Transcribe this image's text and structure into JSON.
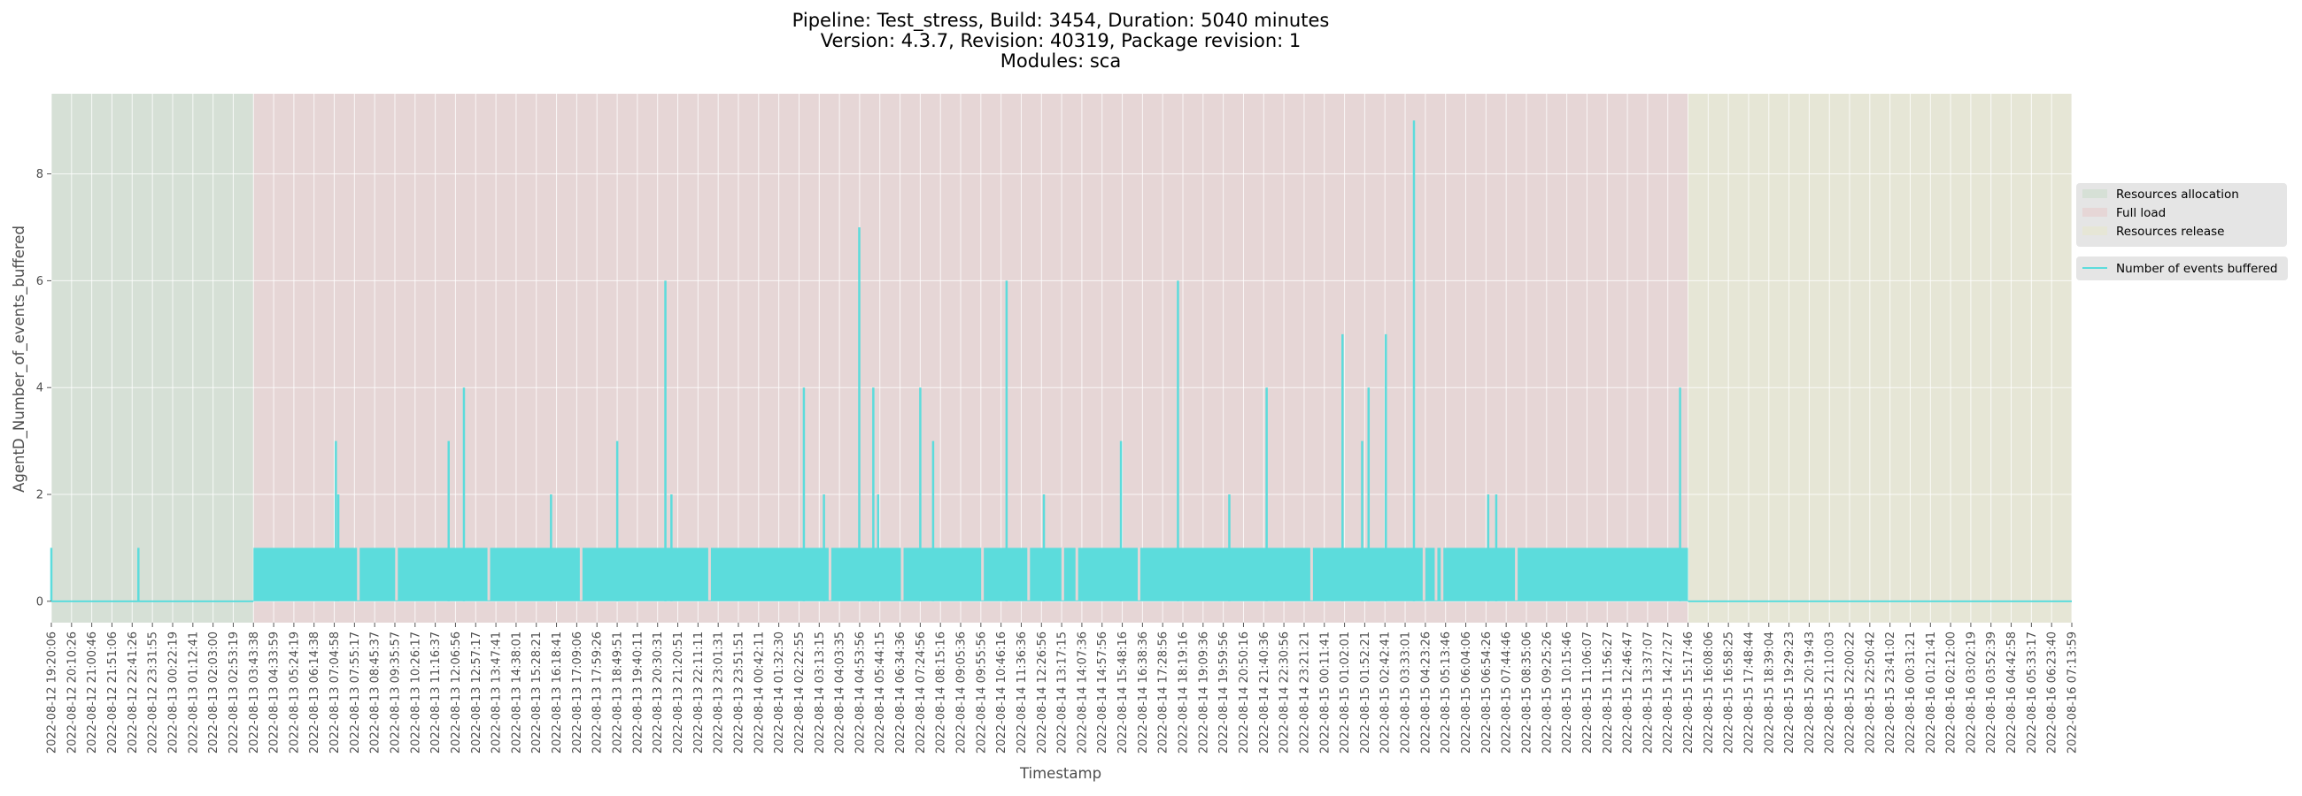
{
  "chart_data": {
    "type": "area",
    "title_lines": [
      "Pipeline: Test_stress, Build: 3454, Duration: 5040 minutes",
      "Version: 4.3.7, Revision: 40319, Package revision: 1",
      "Modules: sca"
    ],
    "xlabel": "Timestamp",
    "ylabel": "AgentD_Number_of_events_buffered",
    "ylim": [
      -0.4,
      9.5
    ],
    "yticks": [
      0,
      2,
      4,
      6,
      8
    ],
    "grid": true,
    "legend_position": "center-right, outside plot",
    "x_tick_labels": [
      "2022-08-12 19:20:06",
      "2022-08-12 20:10:26",
      "2022-08-12 21:00:46",
      "2022-08-12 21:51:06",
      "2022-08-12 22:41:26",
      "2022-08-12 23:31:55",
      "2022-08-13 00:22:19",
      "2022-08-13 01:12:41",
      "2022-08-13 02:03:00",
      "2022-08-13 02:53:19",
      "2022-08-13 03:43:38",
      "2022-08-13 04:33:59",
      "2022-08-13 05:24:19",
      "2022-08-13 06:14:38",
      "2022-08-13 07:04:58",
      "2022-08-13 07:55:17",
      "2022-08-13 08:45:37",
      "2022-08-13 09:35:57",
      "2022-08-13 10:26:17",
      "2022-08-13 11:16:37",
      "2022-08-13 12:06:56",
      "2022-08-13 12:57:17",
      "2022-08-13 13:47:41",
      "2022-08-13 14:38:01",
      "2022-08-13 15:28:21",
      "2022-08-13 16:18:41",
      "2022-08-13 17:09:06",
      "2022-08-13 17:59:26",
      "2022-08-13 18:49:51",
      "2022-08-13 19:40:11",
      "2022-08-13 20:30:31",
      "2022-08-13 21:20:51",
      "2022-08-13 22:11:11",
      "2022-08-13 23:01:31",
      "2022-08-13 23:51:51",
      "2022-08-14 00:42:11",
      "2022-08-14 01:32:30",
      "2022-08-14 02:22:55",
      "2022-08-14 03:13:15",
      "2022-08-14 04:03:35",
      "2022-08-14 04:53:56",
      "2022-08-14 05:44:15",
      "2022-08-14 06:34:36",
      "2022-08-14 07:24:56",
      "2022-08-14 08:15:16",
      "2022-08-14 09:05:36",
      "2022-08-14 09:55:56",
      "2022-08-14 10:46:16",
      "2022-08-14 11:36:36",
      "2022-08-14 12:26:56",
      "2022-08-14 13:17:15",
      "2022-08-14 14:07:36",
      "2022-08-14 14:57:56",
      "2022-08-14 15:48:16",
      "2022-08-14 16:38:36",
      "2022-08-14 17:28:56",
      "2022-08-14 18:19:16",
      "2022-08-14 19:09:36",
      "2022-08-14 19:59:56",
      "2022-08-14 20:50:16",
      "2022-08-14 21:40:36",
      "2022-08-14 22:30:56",
      "2022-08-14 23:21:21",
      "2022-08-15 00:11:41",
      "2022-08-15 01:02:01",
      "2022-08-15 01:52:21",
      "2022-08-15 02:42:41",
      "2022-08-15 03:33:01",
      "2022-08-15 04:23:26",
      "2022-08-15 05:13:46",
      "2022-08-15 06:04:06",
      "2022-08-15 06:54:26",
      "2022-08-15 07:44:46",
      "2022-08-15 08:35:06",
      "2022-08-15 09:25:26",
      "2022-08-15 10:15:46",
      "2022-08-15 11:06:07",
      "2022-08-15 11:56:27",
      "2022-08-15 12:46:47",
      "2022-08-15 13:37:07",
      "2022-08-15 14:27:27",
      "2022-08-15 15:17:46",
      "2022-08-15 16:08:06",
      "2022-08-15 16:58:25",
      "2022-08-15 17:48:44",
      "2022-08-15 18:39:04",
      "2022-08-15 19:29:23",
      "2022-08-15 20:19:43",
      "2022-08-15 21:10:03",
      "2022-08-15 22:00:22",
      "2022-08-15 22:50:42",
      "2022-08-15 23:41:02",
      "2022-08-16 00:31:21",
      "2022-08-16 01:21:41",
      "2022-08-16 02:12:00",
      "2022-08-16 03:02:19",
      "2022-08-16 03:52:39",
      "2022-08-16 04:42:58",
      "2022-08-16 05:33:17",
      "2022-08-16 06:23:40",
      "2022-08-16 07:13:59"
    ],
    "phases": [
      {
        "name": "Resources allocation",
        "start": "2022-08-12 19:20:06",
        "end": "2022-08-13 03:43:38",
        "color": "#d6e0d6"
      },
      {
        "name": "Full load",
        "start": "2022-08-13 03:43:38",
        "end": "2022-08-15 15:17:46",
        "color": "#e6d6d6"
      },
      {
        "name": "Resources release",
        "start": "2022-08-15 15:17:46",
        "end": "2022-08-16 07:13:59",
        "color": "#e6e6d6"
      }
    ],
    "series": [
      {
        "name": "Number of events buffered",
        "color": "#5cdcdc",
        "baseline": [
          {
            "start": "2022-08-12 19:20:06",
            "end": "2022-08-13 03:43:38",
            "value": 0
          },
          {
            "start": "2022-08-13 03:43:38",
            "end": "2022-08-15 15:17:46",
            "value": 1
          },
          {
            "start": "2022-08-15 15:17:46",
            "end": "2022-08-16 07:13:59",
            "value": 0
          }
        ],
        "spikes": [
          {
            "x": "2022-08-12 19:20:06",
            "y": 1
          },
          {
            "x": "2022-08-12 22:57:00",
            "y": 1
          },
          {
            "x": "2022-08-13 07:09:00",
            "y": 3
          },
          {
            "x": "2022-08-13 07:15:00",
            "y": 2
          },
          {
            "x": "2022-08-13 11:50:00",
            "y": 3
          },
          {
            "x": "2022-08-13 12:28:00",
            "y": 4
          },
          {
            "x": "2022-08-13 16:05:00",
            "y": 2
          },
          {
            "x": "2022-08-13 18:50:00",
            "y": 3
          },
          {
            "x": "2022-08-13 20:50:00",
            "y": 6
          },
          {
            "x": "2022-08-13 21:05:00",
            "y": 2
          },
          {
            "x": "2022-08-14 02:35:00",
            "y": 4
          },
          {
            "x": "2022-08-14 03:25:00",
            "y": 2
          },
          {
            "x": "2022-08-14 04:53:00",
            "y": 7
          },
          {
            "x": "2022-08-14 05:28:00",
            "y": 4
          },
          {
            "x": "2022-08-14 05:40:00",
            "y": 2
          },
          {
            "x": "2022-08-14 07:25:00",
            "y": 4
          },
          {
            "x": "2022-08-14 07:57:00",
            "y": 3
          },
          {
            "x": "2022-08-14 11:00:00",
            "y": 6
          },
          {
            "x": "2022-08-14 12:33:00",
            "y": 2
          },
          {
            "x": "2022-08-14 15:45:00",
            "y": 3
          },
          {
            "x": "2022-08-14 18:07:00",
            "y": 6
          },
          {
            "x": "2022-08-14 20:15:00",
            "y": 2
          },
          {
            "x": "2022-08-14 21:48:00",
            "y": 4
          },
          {
            "x": "2022-08-15 00:57:00",
            "y": 5
          },
          {
            "x": "2022-08-15 01:46:00",
            "y": 3
          },
          {
            "x": "2022-08-15 02:02:00",
            "y": 4
          },
          {
            "x": "2022-08-15 02:45:00",
            "y": 5
          },
          {
            "x": "2022-08-15 03:55:00",
            "y": 9
          },
          {
            "x": "2022-08-15 07:00:00",
            "y": 2
          },
          {
            "x": "2022-08-15 07:20:00",
            "y": 2
          },
          {
            "x": "2022-08-15 14:58:00",
            "y": 4
          }
        ],
        "dropouts": [
          "2022-08-13 08:05:00",
          "2022-08-13 09:40:00",
          "2022-08-13 13:30:00",
          "2022-08-13 17:20:00",
          "2022-08-13 22:40:00",
          "2022-08-14 03:40:00",
          "2022-08-14 06:40:00",
          "2022-08-14 10:00:00",
          "2022-08-14 11:55:00",
          "2022-08-14 13:20:00",
          "2022-08-14 13:55:00",
          "2022-08-14 16:30:00",
          "2022-08-14 23:40:00",
          "2022-08-15 04:20:00",
          "2022-08-15 04:50:00",
          "2022-08-15 05:05:00",
          "2022-08-15 08:10:00"
        ]
      }
    ]
  }
}
